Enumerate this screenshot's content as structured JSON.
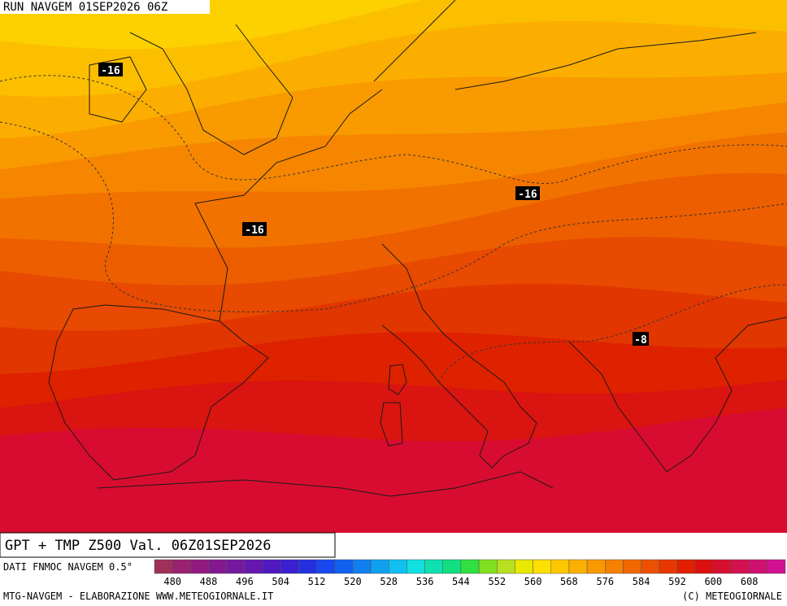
{
  "header": {
    "run": "RUN NAVGEM 01SEP2026 06Z"
  },
  "contour_labels": [
    "-16",
    "-16",
    "-16",
    "-8"
  ],
  "title": "GPT + TMP Z500 Val. 06Z01SEP2026",
  "colorbar": {
    "source": "DATI FNMOC NAVGEM 0.5°",
    "ticks": [
      480,
      488,
      496,
      504,
      512,
      520,
      528,
      536,
      544,
      552,
      560,
      568,
      576,
      584,
      592,
      600,
      608
    ]
  },
  "footer": {
    "left": "MTG-NAVGEM - ELABORAZIONE WWW.METEOGIORNALE.IT",
    "right": "(C) METEOGIORNALE"
  }
}
